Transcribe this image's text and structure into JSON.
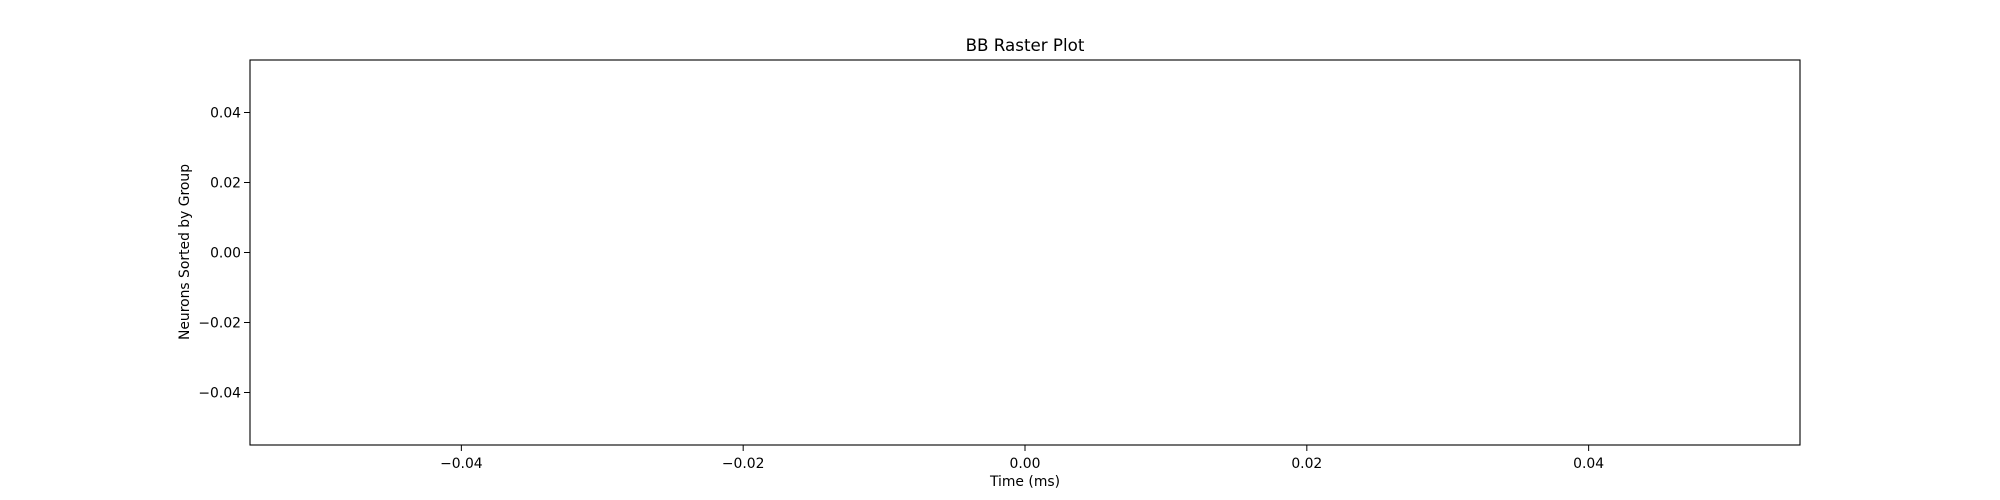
{
  "chart_data": {
    "type": "scatter",
    "title": "BB Raster Plot",
    "xlabel": "Time (ms)",
    "ylabel": "Neurons Sorted by Group",
    "xlim": [
      -0.055,
      0.055
    ],
    "ylim": [
      -0.055,
      0.055
    ],
    "x_ticks": [
      -0.04,
      -0.02,
      0.0,
      0.02,
      0.04
    ],
    "x_tick_labels": [
      "−0.04",
      "−0.02",
      "0.00",
      "0.02",
      "0.04"
    ],
    "y_ticks": [
      0.04,
      0.02,
      0.0,
      -0.02,
      -0.04
    ],
    "y_tick_labels": [
      "0.04",
      "0.02",
      "0.00",
      "−0.02",
      "−0.04"
    ],
    "grid": false,
    "series": [],
    "colors": {
      "axes": "#000000",
      "background": "#ffffff"
    }
  }
}
